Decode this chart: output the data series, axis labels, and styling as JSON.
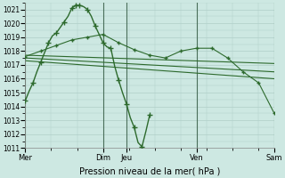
{
  "background_color": "#cde8e2",
  "grid_color": "#b0cfc8",
  "line_color": "#2d6a2d",
  "xlabel": "Pression niveau de la mer( hPa )",
  "ylim": [
    1011,
    1021.5
  ],
  "ytick_min": 1011,
  "ytick_max": 1021,
  "vline_color": "#4a6e5a",
  "series": [
    {
      "x": [
        0,
        0.5,
        1,
        1.5,
        2,
        2.5,
        3,
        3.5,
        4,
        4.5,
        5,
        5.5,
        6,
        6.5,
        7,
        7.5,
        8,
        8.5,
        9,
        9.5,
        10,
        10.5,
        11,
        11.5,
        12,
        12.5,
        13,
        13.5,
        14,
        14.5,
        15,
        15.5,
        16
      ],
      "y": [
        1014.4,
        1015.1,
        1015.7,
        1016.5,
        1017.2,
        1017.9,
        1018.6,
        1019.1,
        1019.3,
        1019.7,
        1020.1,
        1020.5,
        1021.1,
        1021.3,
        1021.3,
        1021.2,
        1021.0,
        1020.5,
        1019.8,
        1019.2,
        1018.6,
        1018.3,
        1018.2,
        1016.9,
        1015.9,
        1015.0,
        1014.2,
        1013.2,
        1012.5,
        1011.4,
        1011.1,
        1012.2,
        1013.4
      ],
      "marker": "+",
      "markersize": 4,
      "linewidth": 1.0,
      "marker_every": [
        0,
        2,
        4,
        6,
        8,
        10,
        12,
        13,
        14,
        16,
        18,
        20,
        22,
        24,
        26,
        28,
        30,
        32
      ]
    },
    {
      "x": [
        0,
        2,
        4,
        6,
        8,
        10,
        12,
        14,
        16,
        18,
        20,
        22,
        24,
        26,
        28,
        30,
        32
      ],
      "y": [
        1017.6,
        1018.0,
        1018.4,
        1018.8,
        1019.0,
        1019.2,
        1018.6,
        1018.1,
        1017.7,
        1017.5,
        1018.0,
        1018.2,
        1018.2,
        1017.5,
        1016.5,
        1015.7,
        1013.5
      ],
      "marker": "+",
      "markersize": 3.5,
      "linewidth": 0.8
    },
    {
      "x": [
        0,
        32
      ],
      "y": [
        1017.7,
        1017.1
      ],
      "marker": null,
      "linewidth": 0.8
    },
    {
      "x": [
        0,
        32
      ],
      "y": [
        1017.5,
        1016.5
      ],
      "marker": null,
      "linewidth": 0.8
    },
    {
      "x": [
        0,
        32
      ],
      "y": [
        1017.3,
        1016.0
      ],
      "marker": null,
      "linewidth": 0.8
    }
  ],
  "vlines": [
    0,
    10,
    13,
    22,
    32
  ],
  "xtick_positions": [
    0,
    10,
    13,
    22,
    32
  ],
  "xtick_labels": [
    "Mer",
    "Dim",
    "Jeu",
    "Ven",
    "Sam"
  ],
  "xlim": [
    0,
    32
  ]
}
